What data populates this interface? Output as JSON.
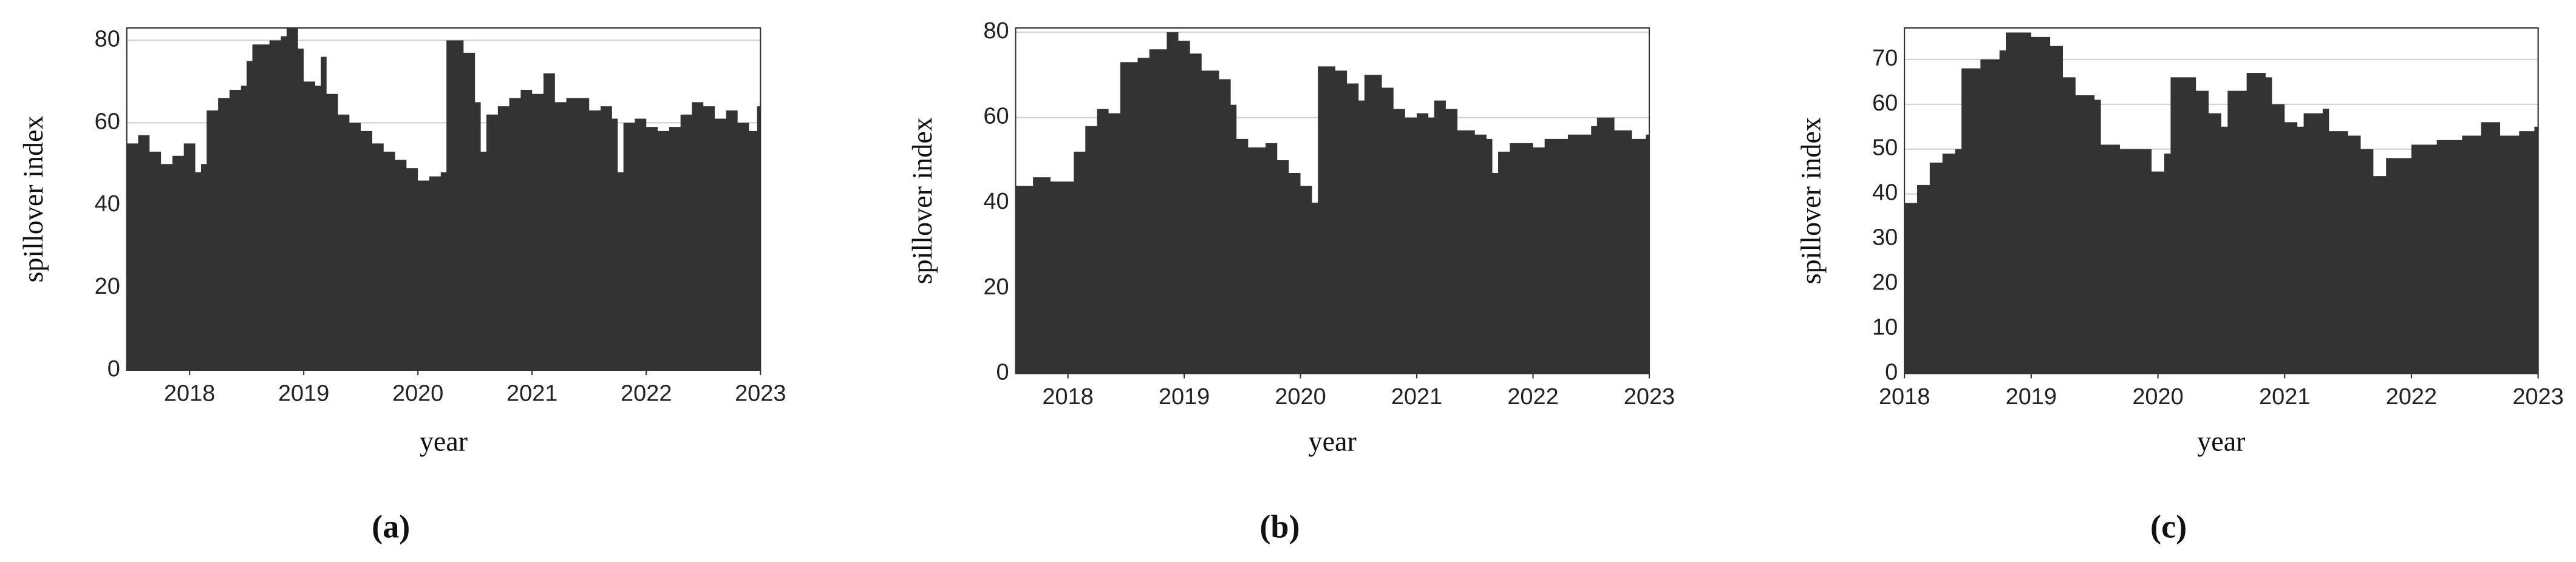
{
  "chart_data": [
    {
      "type": "area",
      "caption": "(a)",
      "xlabel": "year",
      "ylabel": "spillover index",
      "color": "#333333",
      "grid": true,
      "xlim": [
        2017.45,
        2023
      ],
      "xticks": [
        2018,
        2019,
        2020,
        2021,
        2022,
        2023
      ],
      "ylim": [
        0,
        83
      ],
      "yticks": [
        0,
        20,
        40,
        60,
        80
      ],
      "x": [
        2017.45,
        2017.55,
        2017.65,
        2017.75,
        2017.85,
        2017.95,
        2018.05,
        2018.1,
        2018.15,
        2018.25,
        2018.35,
        2018.45,
        2018.5,
        2018.55,
        2018.7,
        2018.8,
        2018.85,
        2018.95,
        2019.0,
        2019.1,
        2019.15,
        2019.2,
        2019.3,
        2019.4,
        2019.5,
        2019.6,
        2019.7,
        2019.8,
        2019.9,
        2020.0,
        2020.1,
        2020.2,
        2020.25,
        2020.4,
        2020.5,
        2020.55,
        2020.6,
        2020.7,
        2020.8,
        2020.9,
        2021.0,
        2021.1,
        2021.2,
        2021.3,
        2021.5,
        2021.6,
        2021.7,
        2021.75,
        2021.8,
        2021.9,
        2022.0,
        2022.1,
        2022.2,
        2022.3,
        2022.4,
        2022.5,
        2022.6,
        2022.7,
        2022.8,
        2022.9,
        2022.97
      ],
      "values": [
        55,
        57,
        53,
        50,
        52,
        55,
        48,
        50,
        63,
        66,
        68,
        69,
        75,
        79,
        80,
        81,
        83,
        78,
        70,
        69,
        76,
        67,
        62,
        60,
        58,
        55,
        53,
        51,
        49,
        46,
        47,
        48,
        80,
        77,
        65,
        53,
        62,
        64,
        66,
        68,
        67,
        72,
        65,
        66,
        63,
        64,
        61,
        48,
        60,
        61,
        59,
        58,
        59,
        62,
        65,
        64,
        61,
        63,
        60,
        58,
        64
      ]
    },
    {
      "type": "area",
      "caption": "(b)",
      "xlabel": "year",
      "ylabel": "spillover index",
      "color": "#333333",
      "grid": true,
      "xlim": [
        2017.55,
        2023
      ],
      "xticks": [
        2018,
        2019,
        2020,
        2021,
        2022,
        2023
      ],
      "ylim": [
        0,
        81
      ],
      "yticks": [
        0,
        20,
        40,
        60,
        80
      ],
      "x": [
        2017.55,
        2017.7,
        2017.85,
        2017.95,
        2018.05,
        2018.15,
        2018.25,
        2018.35,
        2018.45,
        2018.6,
        2018.7,
        2018.85,
        2018.95,
        2019.05,
        2019.15,
        2019.3,
        2019.4,
        2019.45,
        2019.55,
        2019.7,
        2019.8,
        2019.9,
        2020.0,
        2020.1,
        2020.15,
        2020.3,
        2020.4,
        2020.5,
        2020.55,
        2020.7,
        2020.8,
        2020.9,
        2021.0,
        2021.1,
        2021.15,
        2021.25,
        2021.35,
        2021.5,
        2021.6,
        2021.65,
        2021.7,
        2021.8,
        2022.0,
        2022.1,
        2022.3,
        2022.5,
        2022.55,
        2022.7,
        2022.85,
        2022.97
      ],
      "values": [
        44,
        46,
        45,
        45,
        52,
        58,
        62,
        61,
        73,
        74,
        76,
        80,
        78,
        75,
        71,
        69,
        63,
        55,
        53,
        54,
        50,
        47,
        44,
        40,
        72,
        71,
        68,
        64,
        70,
        67,
        62,
        60,
        61,
        60,
        64,
        62,
        57,
        56,
        55,
        47,
        52,
        54,
        53,
        55,
        56,
        58,
        60,
        57,
        55,
        56
      ]
    },
    {
      "type": "area",
      "caption": "(c)",
      "xlabel": "year",
      "ylabel": "spillover index",
      "color": "#333333",
      "grid": true,
      "xlim": [
        2018,
        2023
      ],
      "xticks": [
        2018,
        2019,
        2020,
        2021,
        2022,
        2023
      ],
      "ylim": [
        0,
        77
      ],
      "yticks": [
        0,
        10,
        20,
        30,
        40,
        50,
        60,
        70
      ],
      "x": [
        2018.0,
        2018.1,
        2018.2,
        2018.3,
        2018.4,
        2018.45,
        2018.6,
        2018.75,
        2018.8,
        2019.0,
        2019.15,
        2019.25,
        2019.35,
        2019.5,
        2019.55,
        2019.7,
        2019.9,
        2019.95,
        2020.05,
        2020.1,
        2020.3,
        2020.4,
        2020.5,
        2020.55,
        2020.7,
        2020.85,
        2020.9,
        2021.0,
        2021.1,
        2021.15,
        2021.3,
        2021.35,
        2021.5,
        2021.6,
        2021.7,
        2021.8,
        2022.0,
        2022.2,
        2022.4,
        2022.55,
        2022.7,
        2022.85,
        2022.97
      ],
      "values": [
        38,
        42,
        47,
        49,
        50,
        68,
        70,
        72,
        76,
        75,
        73,
        66,
        62,
        61,
        51,
        50,
        50,
        45,
        49,
        66,
        63,
        58,
        55,
        63,
        67,
        66,
        60,
        56,
        55,
        58,
        59,
        54,
        53,
        50,
        44,
        48,
        51,
        52,
        53,
        56,
        53,
        54,
        55
      ]
    }
  ]
}
